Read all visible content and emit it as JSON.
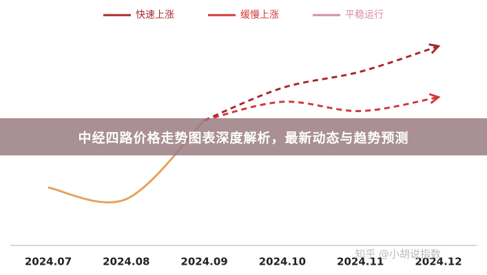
{
  "chart_data": {
    "type": "line",
    "categories": [
      "2024.07",
      "2024.08",
      "2024.09",
      "2024.10",
      "2024.11",
      "2024.12"
    ],
    "series": [
      {
        "color": "#e8a05e",
        "values": [
          25,
          20,
          54,
          null,
          null,
          null
        ]
      },
      {
        "name": "快速上涨",
        "color": "#a8282a",
        "dashed": true,
        "values": [
          null,
          null,
          54,
          68,
          75,
          86
        ]
      },
      {
        "name": "缓慢上涨",
        "color": "#d2383a",
        "dashed": true,
        "values": [
          null,
          null,
          54,
          62,
          58,
          64
        ]
      },
      {
        "name": "平稳运行",
        "color": "#d98aa6",
        "dashed": true,
        "values": [
          null,
          null,
          null,
          null,
          null,
          null
        ]
      }
    ],
    "ylim": [
      0,
      100
    ],
    "watermark": "知乎 @小胡说指数",
    "banner": "中经四路价格走势图表深度解析，最新动态与趋势预测"
  }
}
